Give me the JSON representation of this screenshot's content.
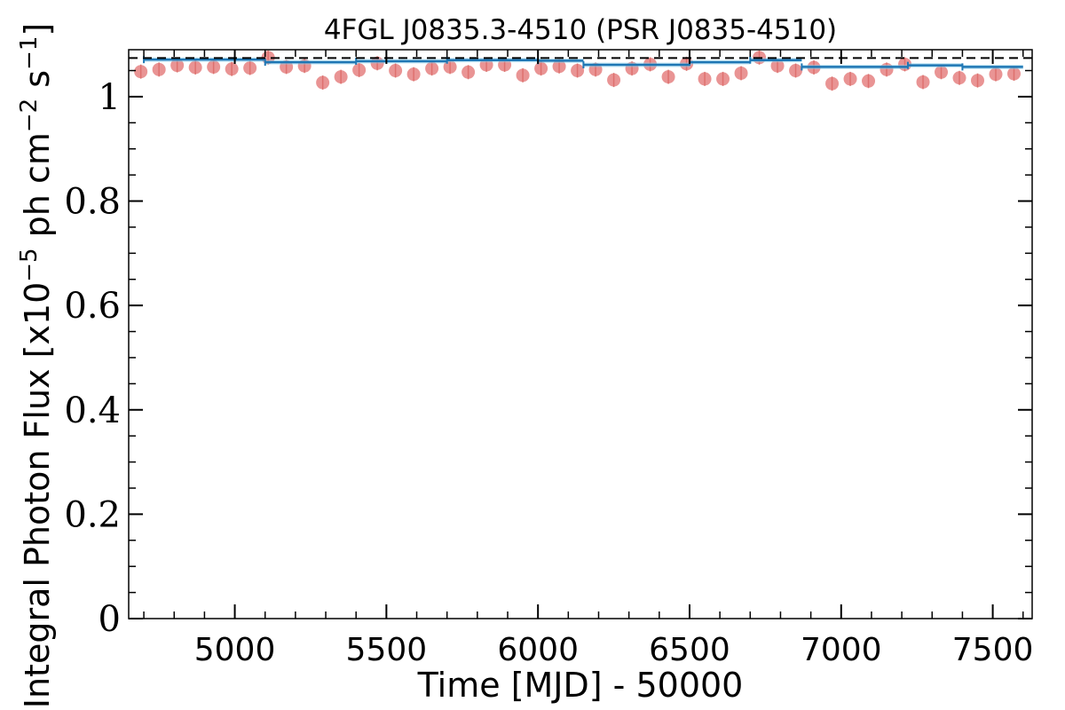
{
  "chart_data": {
    "type": "scatter",
    "title": "4FGL J0835.3-4510 (PSR J0835-4510)",
    "xlabel": "Time [MJD] - 50000",
    "ylabel_parts": {
      "prefix": "Integral Photon Flux [x10",
      "exp1": "−5",
      "mid": " ph cm",
      "exp2": "−2",
      "space": " s",
      "exp3": "−1",
      "suffix": "]"
    },
    "xlim": [
      4650,
      7630
    ],
    "ylim": [
      0,
      1.09
    ],
    "x_ticks": [
      5000,
      5500,
      6000,
      6500,
      7000,
      7500
    ],
    "x_tick_labels": [
      "5000",
      "5500",
      "6000",
      "6500",
      "7000",
      "7500"
    ],
    "y_ticks": [
      0,
      0.2,
      0.4,
      0.6,
      0.8,
      1.0
    ],
    "y_tick_labels": [
      "0",
      "0.2",
      "0.4",
      "0.6",
      "0.8",
      "1"
    ],
    "grid": false,
    "reference_level": {
      "style": "dashed",
      "color": "#000000",
      "value": 1.074
    },
    "colors": {
      "points": "#e06666",
      "step_line": "#1f77b4",
      "step_band": "#87ceeb"
    },
    "series": [
      {
        "kind": "scatter",
        "x": [
          4690,
          4750,
          4810,
          4870,
          4930,
          4990,
          5050,
          5110,
          5170,
          5230,
          5290,
          5350,
          5410,
          5470,
          5530,
          5590,
          5650,
          5710,
          5770,
          5830,
          5890,
          5950,
          6010,
          6070,
          6130,
          6190,
          6250,
          6310,
          6370,
          6430,
          6490,
          6550,
          6610,
          6670,
          6730,
          6790,
          6850,
          6910,
          6970,
          7030,
          7090,
          7150,
          7210,
          7270,
          7330,
          7390,
          7450,
          7510,
          7570
        ],
        "y": [
          1.048,
          1.052,
          1.06,
          1.056,
          1.057,
          1.053,
          1.055,
          1.075,
          1.057,
          1.059,
          1.027,
          1.038,
          1.051,
          1.064,
          1.05,
          1.043,
          1.054,
          1.057,
          1.047,
          1.061,
          1.061,
          1.041,
          1.054,
          1.058,
          1.05,
          1.052,
          1.032,
          1.054,
          1.062,
          1.038,
          1.063,
          1.034,
          1.034,
          1.045,
          1.075,
          1.059,
          1.05,
          1.056,
          1.025,
          1.034,
          1.03,
          1.052,
          1.062,
          1.028,
          1.047,
          1.036,
          1.031,
          1.043,
          1.044
        ]
      },
      {
        "kind": "step",
        "x_edges": [
          4700,
          5100,
          5400,
          5700,
          6000,
          6150,
          6500,
          6700,
          6870,
          7220,
          7400,
          7600
        ],
        "y": [
          1.071,
          1.066,
          1.068,
          1.07,
          1.069,
          1.061,
          1.066,
          1.07,
          1.057,
          1.06,
          1.057
        ]
      }
    ]
  }
}
